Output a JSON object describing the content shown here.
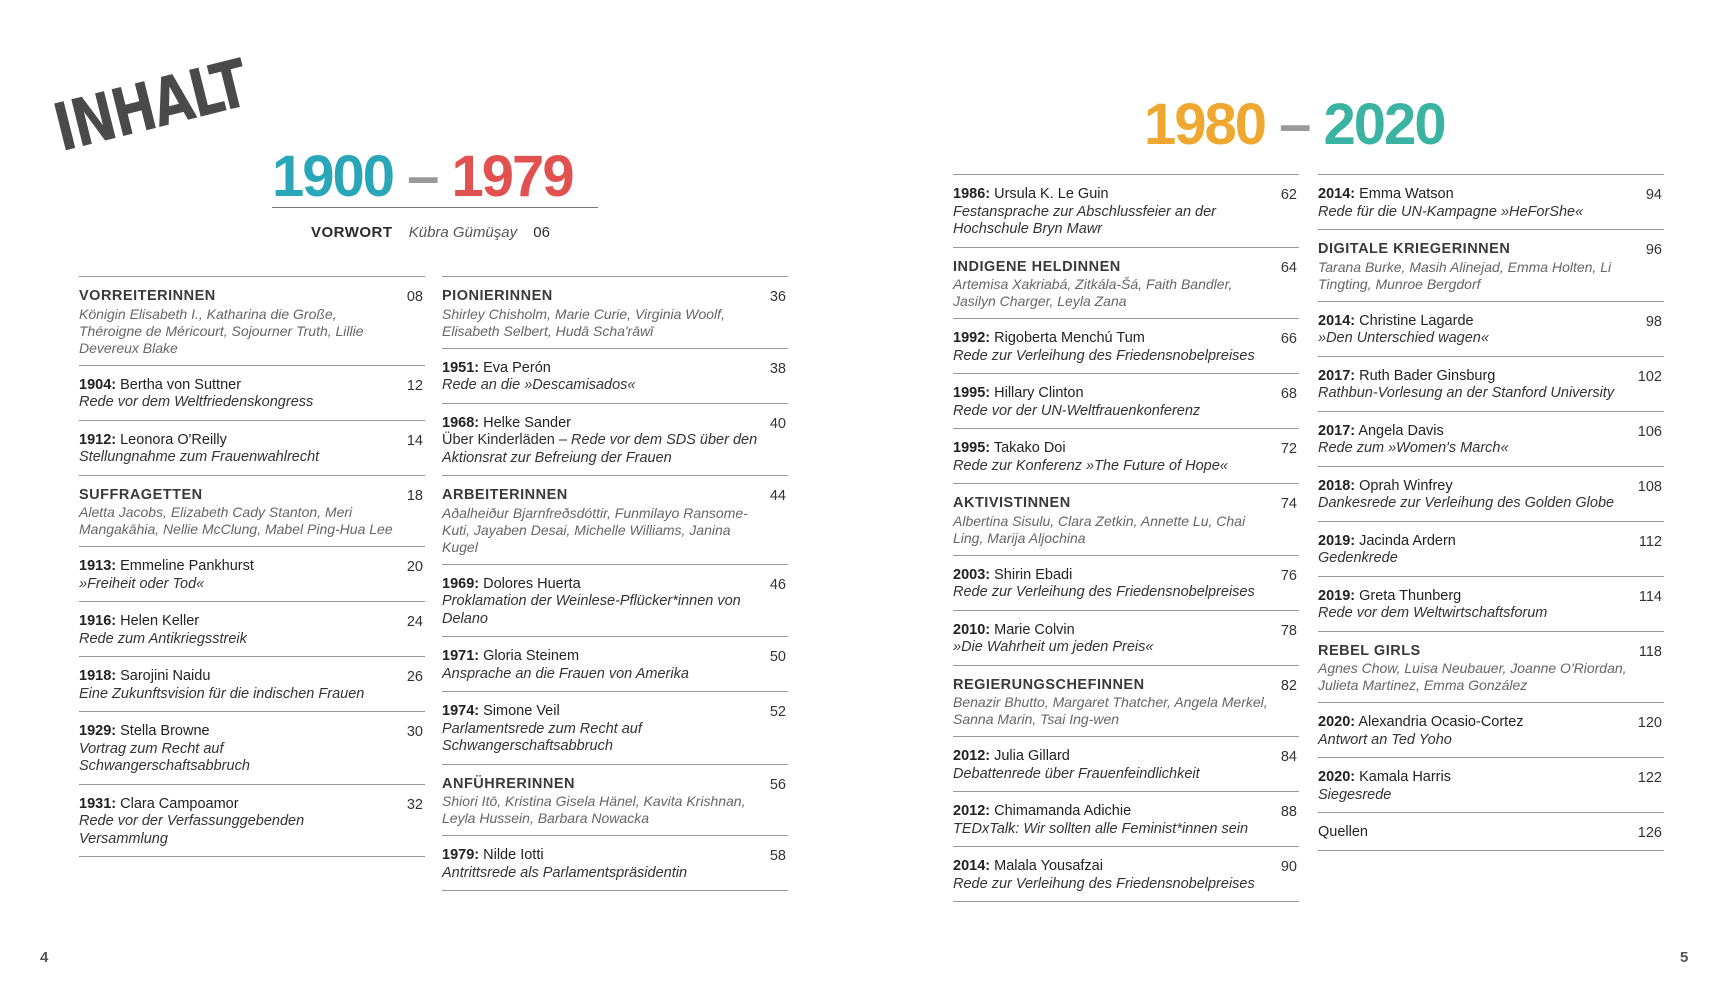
{
  "heading": "INHALT",
  "eras": {
    "left": {
      "start": "1900",
      "dash": "–",
      "end": "1979",
      "start_color": "#2aa6b9",
      "end_color": "#e0514f"
    },
    "right": {
      "start": "1980",
      "dash": "–",
      "end": "2020",
      "start_color": "#efa82f",
      "end_color": "#3bb3a3"
    }
  },
  "vorwort": {
    "label": "VORWORT",
    "author": "Kübra Gümüşay",
    "page": "06"
  },
  "columns": [
    [
      {
        "type": "cat",
        "title": "VORREITERINNEN",
        "names": "Königin Elisabeth I., Katharina die Große, Théroigne de Méricourt, Sojourner Truth, Lillie Devereux Blake",
        "page": "08"
      },
      {
        "type": "speech",
        "year": "1904:",
        "name": " Bertha von Suttner",
        "sub": "Rede vor dem Weltfriedenskongress",
        "page": "12"
      },
      {
        "type": "speech",
        "year": "1912:",
        "name": " Leonora O'Reilly",
        "sub": "Stellungnahme zum Frauenwahlrecht",
        "page": "14"
      },
      {
        "type": "cat",
        "title": "SUFFRAGETTEN",
        "names": "Aletta Jacobs, Elizabeth Cady Stanton, Meri Mangakāhia, Nellie McClung, Mabel Ping-Hua Lee",
        "page": "18"
      },
      {
        "type": "speech",
        "year": "1913:",
        "name": " Emmeline Pankhurst",
        "sub": "»Freiheit oder Tod«",
        "page": "20"
      },
      {
        "type": "speech",
        "year": "1916:",
        "name": " Helen Keller",
        "sub": "Rede zum Antikriegsstreik",
        "page": "24"
      },
      {
        "type": "speech",
        "year": "1918:",
        "name": " Sarojini Naidu",
        "sub": "Eine Zukunftsvision für die indischen Frauen",
        "page": "26"
      },
      {
        "type": "speech",
        "year": "1929:",
        "name": " Stella Browne",
        "sub": "Vortrag zum Recht auf Schwangerschaftsabbruch",
        "page": "30"
      },
      {
        "type": "speech",
        "year": "1931:",
        "name": " Clara Campoamor",
        "sub": "Rede vor der Verfassunggebenden Versammlung",
        "page": "32"
      }
    ],
    [
      {
        "type": "cat",
        "title": "PIONIERINNEN",
        "names": "Shirley Chisholm, Marie Curie, Virginia Woolf, Elisabeth Selbert, Hudā Scha'rāwī",
        "page": "36"
      },
      {
        "type": "speech",
        "year": "1951:",
        "name": " Eva Perón",
        "sub": "Rede an die »Descamisados«",
        "page": "38"
      },
      {
        "type": "speech",
        "year": "1968:",
        "name": " Helke Sander",
        "mixed": "Über Kinderläden – ",
        "sub": "Rede vor dem SDS über den Aktionsrat zur Befreiung der Frauen",
        "page": "40"
      },
      {
        "type": "cat",
        "title": "ARBEITERINNEN",
        "names": "Aðalheiður Bjarnfreðsdóttir, Funmilayo Ransome-Kuti, Jayaben Desai, Michelle Williams, Janina Kugel",
        "page": "44"
      },
      {
        "type": "speech",
        "year": "1969:",
        "name": " Dolores Huerta",
        "sub": "Proklamation der Weinlese-Pflücker*innen von Delano",
        "page": "46"
      },
      {
        "type": "speech",
        "year": "1971:",
        "name": " Gloria Steinem",
        "sub": "Ansprache an die Frauen von Amerika",
        "page": "50"
      },
      {
        "type": "speech",
        "year": "1974:",
        "name": " Simone Veil",
        "sub": "Parlamentsrede zum Recht auf Schwangerschaftsabbruch",
        "page": "52"
      },
      {
        "type": "cat",
        "title": "ANFÜHRERINNEN",
        "names": "Shiori Itō, Kristina Gisela Hänel, Kavita Krishnan, Leyla Hussein, Barbara Nowacka",
        "page": "56"
      },
      {
        "type": "speech",
        "year": "1979:",
        "name": " Nilde Iotti",
        "sub": "Antrittsrede als Parlamentspräsidentin",
        "page": "58"
      }
    ],
    [
      {
        "type": "speech",
        "year": "1986:",
        "name": " Ursula K. Le Guin",
        "sub": "Festansprache zur Abschlussfeier an der Hochschule Bryn Mawr",
        "page": "62"
      },
      {
        "type": "cat",
        "title": "INDIGENE HELDINNEN",
        "names": "Artemisa Xakriabá, Zitkála-Šá, Faith Bandler, Jasilyn Charger, Leyla Zana",
        "page": "64"
      },
      {
        "type": "speech",
        "year": "1992:",
        "name": " Rigoberta Menchú Tum",
        "sub": "Rede zur Verleihung des Friedensnobelpreises",
        "page": "66"
      },
      {
        "type": "speech",
        "year": "1995:",
        "name": " Hillary Clinton",
        "sub": "Rede vor der UN-Weltfrauenkonferenz",
        "page": "68"
      },
      {
        "type": "speech",
        "year": "1995:",
        "name": " Takako Doi",
        "sub": "Rede zur Konferenz »The Future of Hope«",
        "page": "72"
      },
      {
        "type": "cat",
        "title": "AKTIVISTINNEN",
        "names": "Albertina Sisulu, Clara Zetkin, Annette Lu, Chai Ling, Marija Aljochina",
        "page": "74"
      },
      {
        "type": "speech",
        "year": "2003:",
        "name": " Shirin Ebadi",
        "sub": "Rede zur Verleihung des Friedensnobelpreises",
        "page": "76"
      },
      {
        "type": "speech",
        "year": "2010:",
        "name": " Marie Colvin",
        "sub": "»Die Wahrheit um jeden Preis«",
        "page": "78"
      },
      {
        "type": "cat",
        "title": "REGIERUNGSCHEFINNEN",
        "names": "Benazir Bhutto, Margaret Thatcher, Angela Merkel, Sanna Marin, Tsai Ing-wen",
        "page": "82"
      },
      {
        "type": "speech",
        "year": "2012:",
        "name": " Julia Gillard",
        "sub": "Debattenrede über Frauenfeindlichkeit",
        "page": "84"
      },
      {
        "type": "speech",
        "year": "2012:",
        "name": " Chimamanda Adichie",
        "sub": "TEDxTalk: Wir sollten alle Feminist*innen sein",
        "page": "88"
      },
      {
        "type": "speech",
        "year": "2014:",
        "name": " Malala Yousafzai",
        "sub": "Rede zur Verleihung des Friedensnobelpreises",
        "page": "90"
      }
    ],
    [
      {
        "type": "speech",
        "year": "2014:",
        "name": " Emma Watson",
        "sub": "Rede für die UN-Kampagne »HeForShe«",
        "page": "94"
      },
      {
        "type": "cat",
        "title": "DIGITALE KRIEGERINNEN",
        "names": "Tarana Burke, Masih Alinejad, Emma Holten, Li Tingting, Munroe Bergdorf",
        "page": "96"
      },
      {
        "type": "speech",
        "year": "2014:",
        "name": " Christine Lagarde",
        "sub": "»Den Unterschied wagen«",
        "page": "98"
      },
      {
        "type": "speech",
        "year": "2017:",
        "name": " Ruth Bader Ginsburg",
        "sub": "Rathbun-Vorlesung an der Stanford University",
        "page": "102"
      },
      {
        "type": "speech",
        "year": "2017:",
        "name": " Angela Davis",
        "sub": "Rede zum »Women's March«",
        "page": "106"
      },
      {
        "type": "speech",
        "year": "2018:",
        "name": " Oprah Winfrey",
        "sub": "Dankesrede zur Verleihung des Golden Globe",
        "page": "108"
      },
      {
        "type": "speech",
        "year": "2019:",
        "name": " Jacinda Ardern",
        "sub": "Gedenkrede",
        "page": "112"
      },
      {
        "type": "speech",
        "year": "2019:",
        "name": " Greta Thunberg",
        "sub": "Rede vor dem Weltwirtschaftsforum",
        "page": "114"
      },
      {
        "type": "cat",
        "title": "REBEL GIRLS",
        "names": "Agnes Chow, Luisa Neubauer, Joanne O'Riordan, Julieta Martinez, Emma González",
        "page": "118"
      },
      {
        "type": "speech",
        "year": "2020:",
        "name": " Alexandria Ocasio-Cortez",
        "sub": "Antwort an Ted Yoho",
        "page": "120"
      },
      {
        "type": "speech",
        "year": "2020:",
        "name": " Kamala Harris",
        "sub": "Siegesrede",
        "page": "122"
      },
      {
        "type": "plain",
        "title": "Quellen",
        "page": "126"
      }
    ]
  ],
  "page_numbers": {
    "left": "4",
    "right": "5"
  }
}
